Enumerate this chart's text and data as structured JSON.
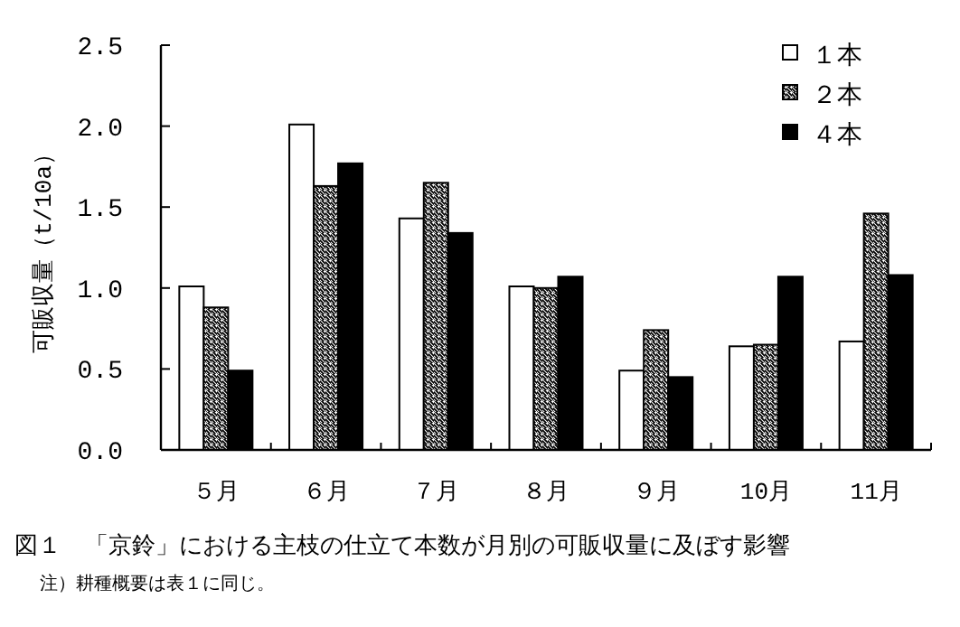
{
  "chart_data": {
    "type": "bar",
    "title": "図１　「京鈴」における主枝の仕立て本数が月別の可販収量に及ぼす影響",
    "ylabel": "可販収量（t/10a）",
    "annotations": [
      "注）耕種概要は表１に同じ。"
    ],
    "categories": [
      "５月",
      "６月",
      "７月",
      "８月",
      "９月",
      "10月",
      "11月"
    ],
    "series": [
      {
        "name": "１本",
        "color": "#ffffff",
        "values": [
          1.01,
          2.01,
          1.43,
          1.01,
          0.49,
          0.64,
          0.67
        ]
      },
      {
        "name": "２本",
        "color": "#000000",
        "values": [
          0.88,
          1.63,
          1.65,
          1.0,
          0.74,
          0.65,
          1.46
        ]
      },
      {
        "name": "４本",
        "color": "#000000",
        "values": [
          0.49,
          1.77,
          1.34,
          1.07,
          0.45,
          1.07,
          1.08
        ]
      }
    ],
    "ylim": [
      0,
      2.5
    ],
    "yticks": [
      {
        "value": 0,
        "label": "0.0"
      },
      0.5,
      {
        "value": 1,
        "label": "1.0"
      },
      1.5,
      {
        "value": 2,
        "label": "2.0"
      },
      2.5
    ],
    "grid": false,
    "legend": "top right"
  }
}
